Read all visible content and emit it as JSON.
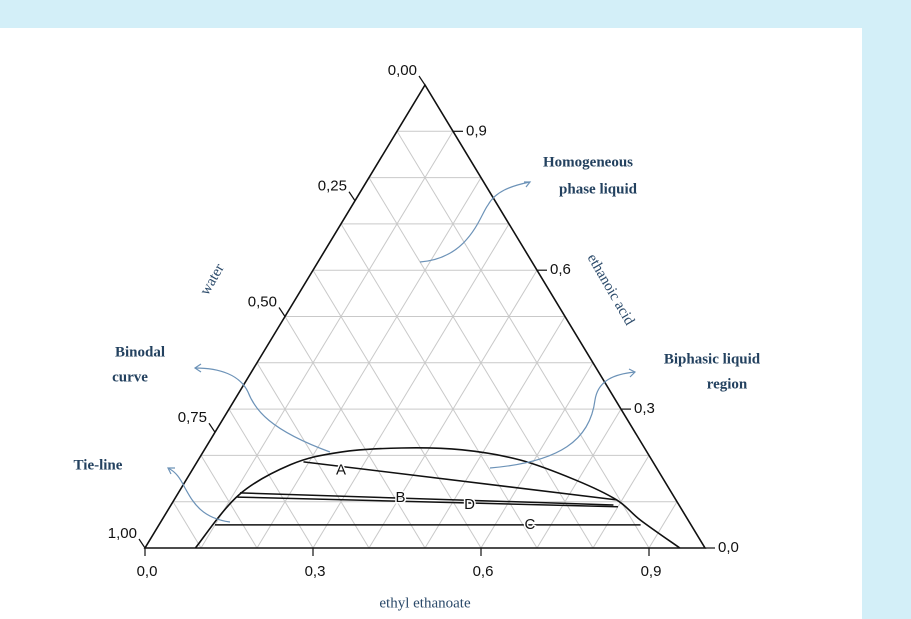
{
  "chart_data": {
    "type": "ternary",
    "axes": {
      "bottom": {
        "title": "ethyl ethanoate",
        "ticks": [
          {
            "value": 0,
            "label": "0,0"
          },
          {
            "value": 0.3,
            "label": "0,3"
          },
          {
            "value": 0.6,
            "label": "0,6"
          },
          {
            "value": 0.9,
            "label": "0,9"
          }
        ]
      },
      "right": {
        "title": "ethanoic acid",
        "ticks": [
          {
            "value": 0.9,
            "label": "0,9"
          },
          {
            "value": 0.6,
            "label": "0,6"
          },
          {
            "value": 0.3,
            "label": "0,3"
          },
          {
            "value": 0,
            "label": "0,0"
          }
        ]
      },
      "left": {
        "title": "water",
        "ticks": [
          {
            "value": 0,
            "label": "0,00"
          },
          {
            "value": 0.25,
            "label": "0,25"
          },
          {
            "value": 0.5,
            "label": "0,50"
          },
          {
            "value": 0.75,
            "label": "0,75"
          },
          {
            "value": 1,
            "label": "1,00"
          }
        ]
      }
    },
    "grid": true,
    "binodal": {
      "ethyl_ethanoate": [
        0.09,
        0.11,
        0.17,
        0.245,
        0.35,
        0.46,
        0.575,
        0.695,
        0.79,
        0.855,
        0.955
      ],
      "ethanoic_acid": [
        0,
        0.114,
        0.18,
        0.207,
        0.216,
        0.212,
        0.19,
        0.147,
        0.104,
        0.06,
        0
      ]
    },
    "tie_lines": [
      {
        "label": "A",
        "ethyl_ethanoate": [
          0.19,
          0.79
        ],
        "ethanoic_acid": [
          0.186,
          0.104
        ]
      },
      {
        "label": "B",
        "ethyl_ethanoate": [
          0.11,
          0.79
        ],
        "ethanoic_acid": [
          0.119,
          0.093
        ]
      },
      {
        "label": "D",
        "ethyl_ethanoate": [
          0.11,
          0.8
        ],
        "ethanoic_acid": [
          0.11,
          0.089
        ]
      },
      {
        "label": "C",
        "ethyl_ethanoate": [
          0.1,
          0.86
        ],
        "ethanoic_acid": [
          0.05,
          0.05
        ]
      }
    ],
    "annotations": [
      {
        "lines": [
          "Homogeneous",
          "phase liquid"
        ]
      },
      {
        "lines": [
          "Biphasic liquid",
          "region"
        ]
      },
      {
        "lines": [
          "Binodal",
          "curve"
        ]
      },
      {
        "lines": [
          "Tie-line"
        ]
      }
    ]
  }
}
